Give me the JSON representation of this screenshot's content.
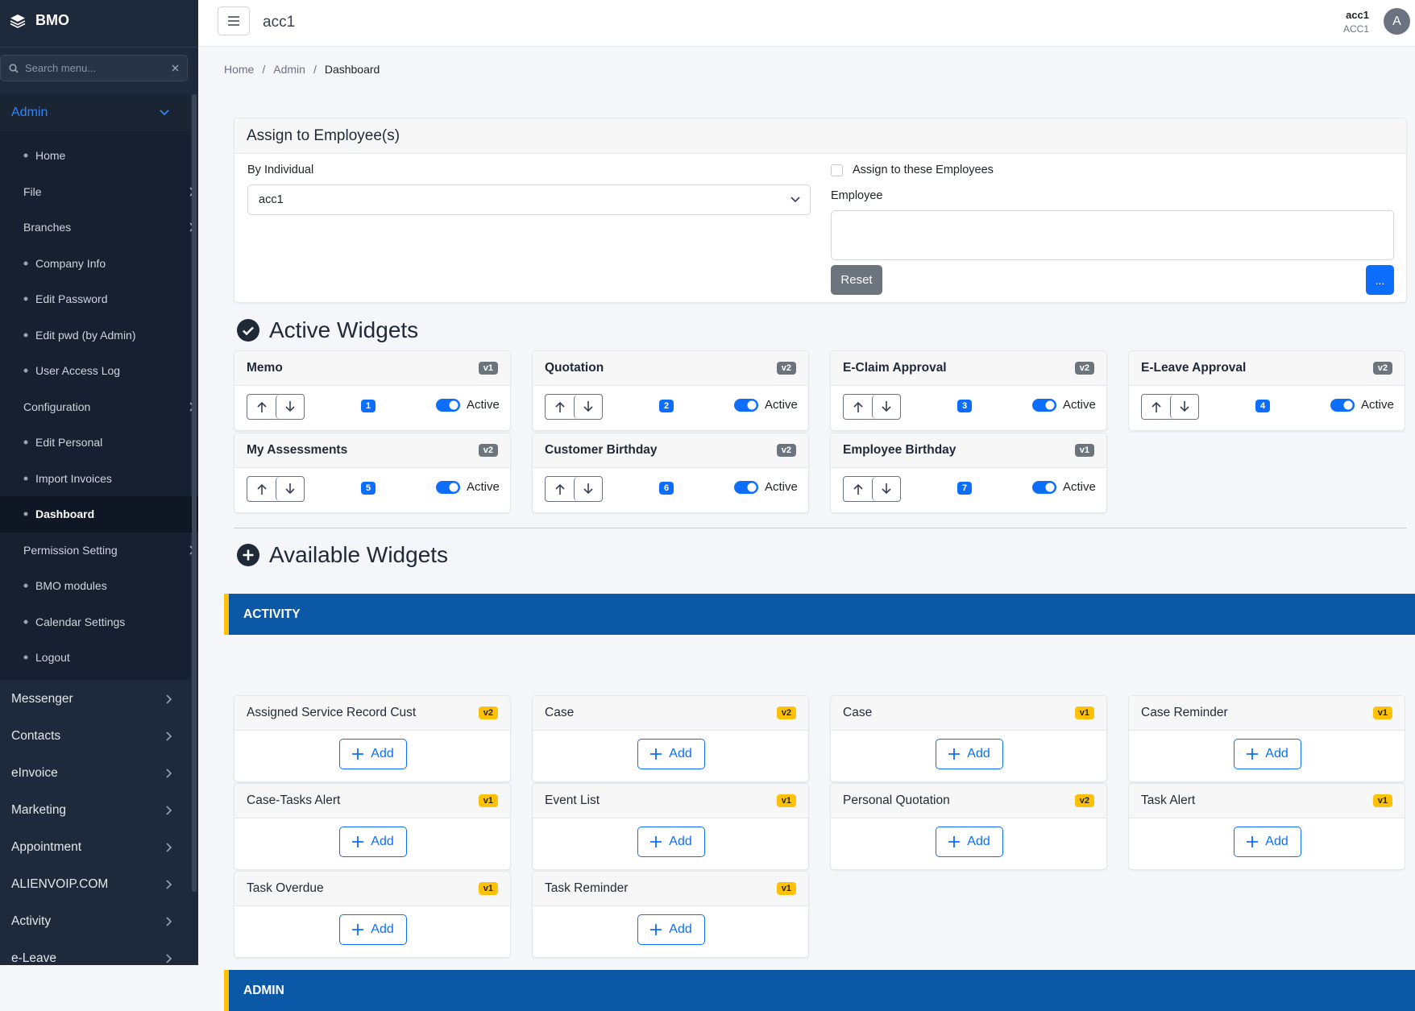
{
  "sidebar": {
    "brand": "BMO",
    "search_placeholder": "Search menu...",
    "section": "Admin",
    "items": [
      {
        "label": "Home",
        "submenu": false
      },
      {
        "label": "File",
        "submenu": true
      },
      {
        "label": "Branches",
        "submenu": true
      },
      {
        "label": "Company Info",
        "submenu": false
      },
      {
        "label": "Edit Password",
        "submenu": false
      },
      {
        "label": "Edit pwd (by Admin)",
        "submenu": false
      },
      {
        "label": "User Access Log",
        "submenu": false
      },
      {
        "label": "Configuration",
        "submenu": true
      },
      {
        "label": "Edit Personal",
        "submenu": false
      },
      {
        "label": "Import Invoices",
        "submenu": false
      },
      {
        "label": "Dashboard",
        "submenu": false,
        "active": true
      },
      {
        "label": "Permission Setting",
        "submenu": true
      },
      {
        "label": "BMO modules",
        "submenu": false
      },
      {
        "label": "Calendar Settings",
        "submenu": false
      },
      {
        "label": "Logout",
        "submenu": false
      }
    ],
    "menus": [
      "Messenger",
      "Contacts",
      "eInvoice",
      "Marketing",
      "Appointment",
      "ALIENVOIP.COM",
      "Activity",
      "e-Leave"
    ]
  },
  "header": {
    "title": "acc1",
    "user_name": "acc1",
    "user_code": "ACC1",
    "avatar": "A"
  },
  "breadcrumb": {
    "items": [
      "Home",
      "Admin",
      "Dashboard"
    ],
    "separator": "/"
  },
  "assign": {
    "title": "Assign to Employee(s)",
    "individual_label": "By Individual",
    "individual_value": "acc1",
    "checkbox_label": "Assign to these Employees",
    "employee_label": "Employee",
    "reset": "Reset",
    "submit": "..."
  },
  "active_widgets": {
    "heading": "Active Widgets",
    "status_label": "Active",
    "widgets": [
      {
        "name": "Memo",
        "version": "v1",
        "order": 1
      },
      {
        "name": "Quotation",
        "version": "v2",
        "order": 2
      },
      {
        "name": "E-Claim Approval",
        "version": "v2",
        "order": 3
      },
      {
        "name": "E-Leave Approval",
        "version": "v2",
        "order": 4
      },
      {
        "name": "My Assessments",
        "version": "v2",
        "order": 5
      },
      {
        "name": "Customer Birthday",
        "version": "v2",
        "order": 6
      },
      {
        "name": "Employee Birthday",
        "version": "v1",
        "order": 7
      }
    ]
  },
  "available_widgets": {
    "heading": "Available Widgets",
    "add_label": "Add",
    "groups": [
      {
        "name": "ACTIVITY",
        "widgets": [
          {
            "name": "Assigned Service Record Cust",
            "version": "v2"
          },
          {
            "name": "Case",
            "version": "v2"
          },
          {
            "name": "Case",
            "version": "v1"
          },
          {
            "name": "Case Reminder",
            "version": "v1"
          },
          {
            "name": "Case-Tasks Alert",
            "version": "v1"
          },
          {
            "name": "Event List",
            "version": "v1"
          },
          {
            "name": "Personal Quotation",
            "version": "v2"
          },
          {
            "name": "Task Alert",
            "version": "v1"
          },
          {
            "name": "Task Overdue",
            "version": "v1"
          },
          {
            "name": "Task Reminder",
            "version": "v1"
          }
        ]
      },
      {
        "name": "ADMIN",
        "widgets": []
      }
    ]
  }
}
